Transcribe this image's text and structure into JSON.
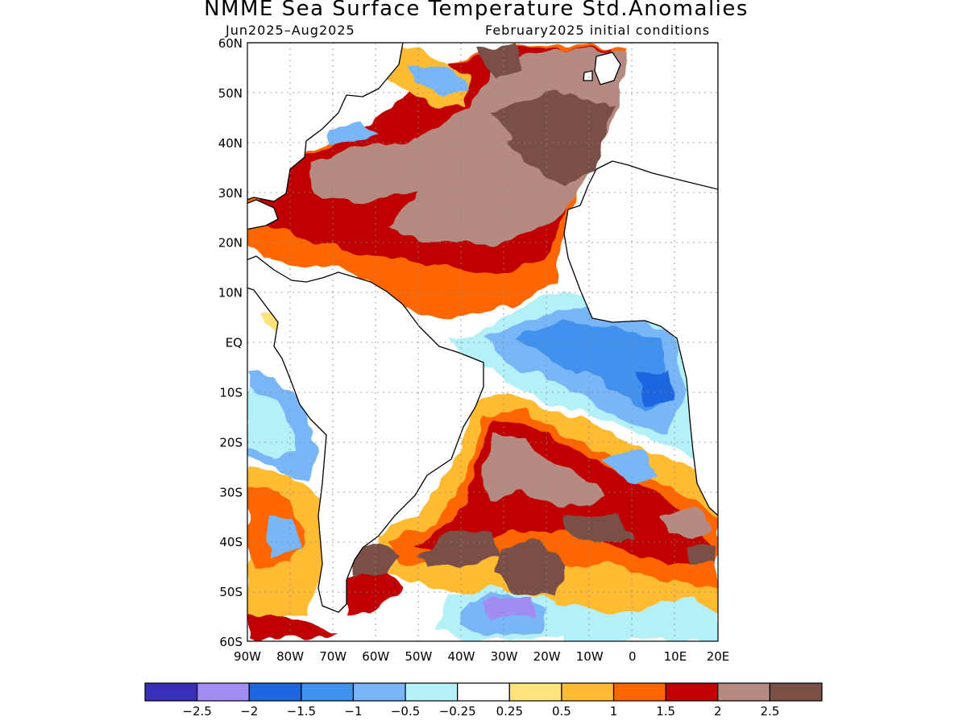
{
  "header": {
    "title": "NMME Sea Surface Temperature Std.Anomalies",
    "period": "Jun2025–Aug2025",
    "init": "February2025 initial conditions"
  },
  "map": {
    "lon_range": [
      -90,
      20
    ],
    "lat_range": [
      -60,
      60
    ],
    "lat_labels": [
      "60N",
      "50N",
      "40N",
      "30N",
      "20N",
      "10N",
      "EQ",
      "10S",
      "20S",
      "30S",
      "40S",
      "50S",
      "60S"
    ],
    "lon_labels": [
      "90W",
      "80W",
      "70W",
      "60W",
      "50W",
      "40W",
      "30W",
      "20W",
      "10W",
      "0",
      "10E",
      "20E"
    ],
    "grid": "dotted"
  },
  "colorbar": {
    "colors": [
      "#3a2fb8",
      "#a08cf3",
      "#1f66e0",
      "#3f92ee",
      "#78b6f7",
      "#b4f0f8",
      "#ffffff",
      "#ffe27a",
      "#ffbb33",
      "#ff6600",
      "#c00000",
      "#b58a80",
      "#7a5045"
    ],
    "labels": [
      "−2.5",
      "−2",
      "−1.5",
      "−1",
      "−0.5",
      "−0.25",
      "0.25",
      "0.5",
      "1",
      "1.5",
      "2",
      "2.5"
    ]
  },
  "chart_data": {
    "type": "heatmap",
    "title": "NMME Sea Surface Temperature Std.Anomalies",
    "subtitle": "Jun2025–Aug2025 February2025 initial conditions",
    "xlim": [
      -90,
      20
    ],
    "ylim": [
      -60,
      60
    ],
    "legend_levels": [
      -2.5,
      -2,
      -1.5,
      -1,
      -0.5,
      -0.25,
      0.25,
      0.5,
      1,
      1.5,
      2,
      2.5
    ],
    "regions": [
      {
        "lon": [
          -80,
          0
        ],
        "lat": [
          25,
          50
        ],
        "value": 2.5
      },
      {
        "lon": [
          -75,
          -15
        ],
        "lat": [
          15,
          30
        ],
        "value": 2.0
      },
      {
        "lon": [
          -60,
          -10
        ],
        "lat": [
          3,
          15
        ],
        "value": 1.5
      },
      {
        "lon": [
          -25,
          10
        ],
        "lat": [
          -15,
          5
        ],
        "value": -1.5
      },
      {
        "lon": [
          -90,
          -75
        ],
        "lat": [
          -25,
          -10
        ],
        "value": -1.0
      },
      {
        "lon": [
          -40,
          10
        ],
        "lat": [
          -35,
          -15
        ],
        "value": 2.0
      },
      {
        "lon": [
          -55,
          10
        ],
        "lat": [
          -50,
          -35
        ],
        "value": 2.5
      },
      {
        "lon": [
          -35,
          -20
        ],
        "lat": [
          -57,
          -52
        ],
        "value": -2.0
      },
      {
        "lon": [
          -90,
          -60
        ],
        "lat": [
          -55,
          -25
        ],
        "value": 1.0
      }
    ]
  }
}
